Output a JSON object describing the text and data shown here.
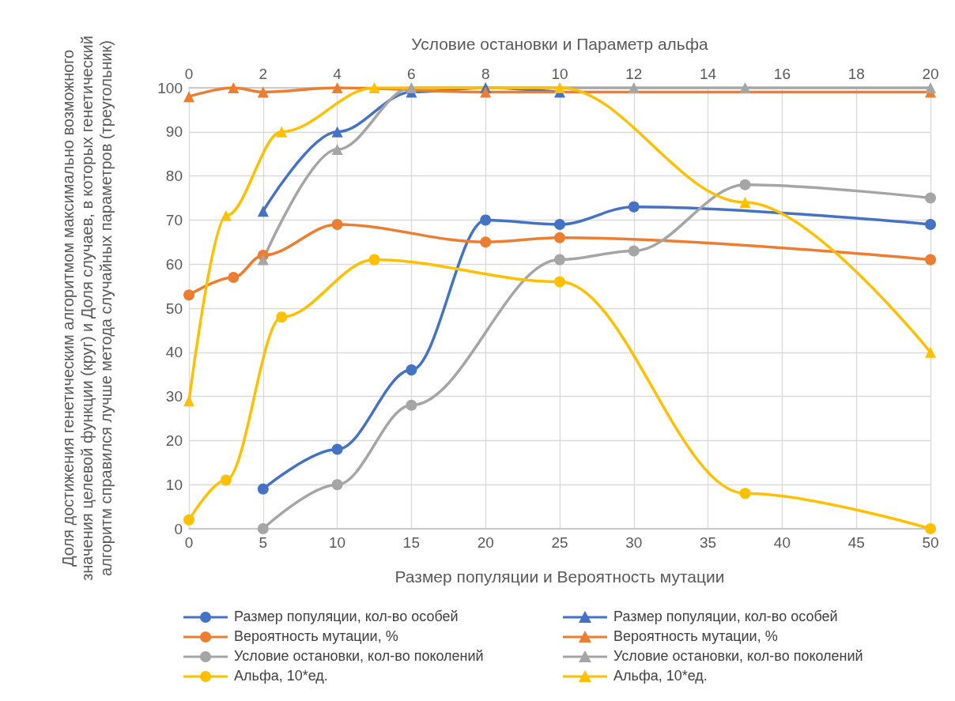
{
  "chart_data": {
    "type": "line",
    "xlabel": "Размер популяции и Вероятность мутации",
    "x2label": "Условие остановки и Параметр альфа",
    "ylabel": "Доля достижения генетическим алгоритмом максимально возможного значения целевой функции (круг) и Доля случаев, в которых генетический алгоритм справился лучше метода случайных параметров (треугольник)",
    "xlim": [
      0,
      50
    ],
    "xticks": [
      0,
      5,
      10,
      15,
      20,
      25,
      30,
      35,
      40,
      45,
      50
    ],
    "x2lim": [
      0,
      20
    ],
    "x2ticks": [
      0,
      2,
      4,
      6,
      8,
      10,
      12,
      14,
      16,
      18,
      20
    ],
    "ylim": [
      0,
      100
    ],
    "yticks": [
      0,
      10,
      20,
      30,
      40,
      50,
      60,
      70,
      80,
      90,
      100
    ],
    "grid": true,
    "legend": "bottom",
    "series": [
      {
        "name": "Размер популяции, кол-во особей",
        "color": "#4472c4",
        "marker": "circle",
        "x": [
          5,
          10,
          15,
          20,
          25,
          30,
          50
        ],
        "values": [
          9,
          18,
          36,
          70,
          69,
          73,
          69
        ]
      },
      {
        "name": "Размер популяции, кол-во особей",
        "color": "#4472c4",
        "marker": "triangle",
        "axis": "x2",
        "x": [
          2,
          4,
          6,
          8,
          10
        ],
        "values": [
          72,
          90,
          99,
          100,
          99
        ]
      },
      {
        "name": "Вероятность мутации, %",
        "color": "#ed7d31",
        "marker": "circle",
        "x": [
          0,
          3,
          5,
          10,
          20,
          25,
          50
        ],
        "values": [
          53,
          57,
          62,
          69,
          65,
          66,
          61
        ]
      },
      {
        "name": "Вероятность мутации, %",
        "color": "#ed7d31",
        "marker": "triangle",
        "axis": "x2",
        "x": [
          0,
          1.2,
          2,
          4,
          8,
          20
        ],
        "values": [
          98,
          100,
          99,
          100,
          99,
          99
        ]
      },
      {
        "name": "Условие остановки, кол-во поколений",
        "color": "#a5a5a5",
        "marker": "circle",
        "x": [
          5,
          10,
          15,
          25,
          30,
          37.5,
          50
        ],
        "values": [
          0,
          10,
          28,
          61,
          63,
          78,
          75
        ]
      },
      {
        "name": "Условие остановки, кол-во поколений",
        "color": "#a5a5a5",
        "marker": "triangle",
        "axis": "x2",
        "x": [
          2,
          4,
          6,
          12,
          15,
          20
        ],
        "values": [
          61,
          86,
          100,
          100,
          100,
          100
        ]
      },
      {
        "name": "Альфа, 10*ед.",
        "color": "#ffc000",
        "marker": "circle",
        "x": [
          0,
          2.5,
          6.25,
          12.5,
          25,
          37.5,
          50
        ],
        "values": [
          2,
          11,
          48,
          61,
          56,
          8,
          0
        ]
      },
      {
        "name": "Альфа, 10*ед.",
        "color": "#ffc000",
        "marker": "triangle",
        "axis": "x2",
        "x": [
          0,
          1,
          2.5,
          5,
          10,
          15,
          20
        ],
        "values": [
          29,
          71,
          90,
          100,
          100,
          74,
          40
        ]
      }
    ]
  }
}
